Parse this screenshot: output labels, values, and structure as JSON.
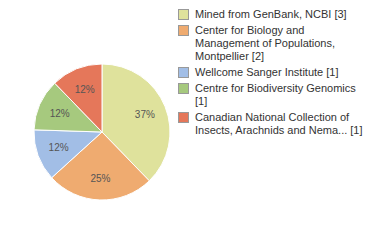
{
  "chart_data": {
    "type": "pie",
    "categories": [
      "Mined from GenBank, NCBI [3]",
      "Center for Biology and Management of Populations, Montpellier [2]",
      "Wellcome Sanger Institute [1]",
      "Centre for Biodiversity Genomics [1]",
      "Canadian National Collection of Insects, Arachnids and Nema... [1]"
    ],
    "values": [
      37,
      25,
      12,
      12,
      12
    ],
    "value_labels": [
      "37%",
      "25%",
      "12%",
      "12%",
      "12%"
    ],
    "colors": [
      "#dfe29c",
      "#efab70",
      "#a2bee6",
      "#a6c97e",
      "#e5775a"
    ],
    "data_labels": true,
    "legend": "right"
  }
}
